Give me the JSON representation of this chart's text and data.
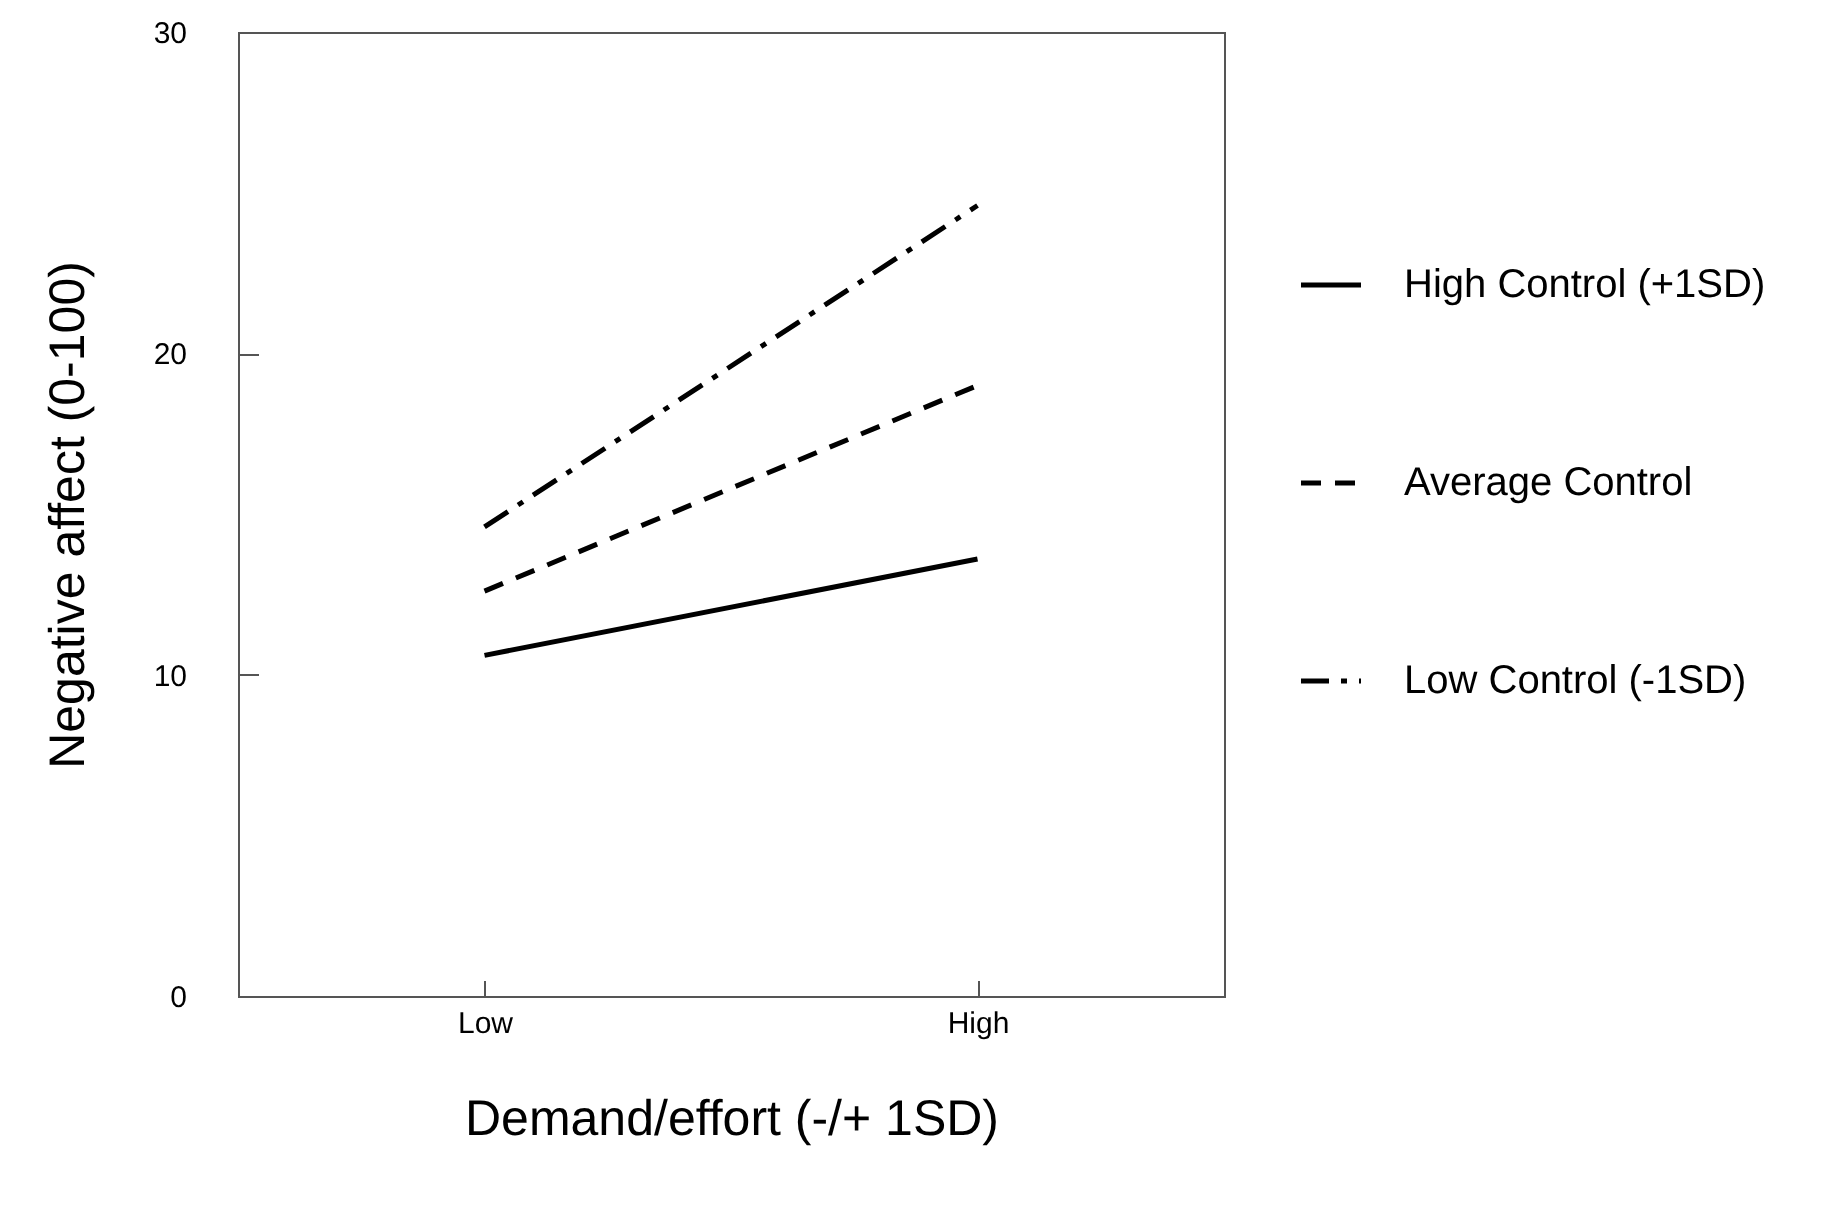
{
  "chart_data": {
    "type": "line",
    "xlabel": "Demand/effort (-/+ 1SD)",
    "ylabel": "Negative affect (0-100)",
    "categories": [
      "Low",
      "High"
    ],
    "series": [
      {
        "name": "High Control (+1SD)",
        "color": "#000000",
        "line_style": "solid",
        "values": [
          10.6,
          13.6
        ]
      },
      {
        "name": "Average Control",
        "color": "#000000",
        "line_style": "dashed",
        "values": [
          12.6,
          19.0
        ]
      },
      {
        "name": "Low Control (-1SD)",
        "color": "#000000",
        "line_style": "dashdot",
        "values": [
          14.6,
          24.6
        ]
      }
    ],
    "ylim": [
      0,
      30
    ],
    "yticks": [
      0,
      10,
      20,
      30
    ],
    "grid": false,
    "legend": "right",
    "marker": "none"
  }
}
